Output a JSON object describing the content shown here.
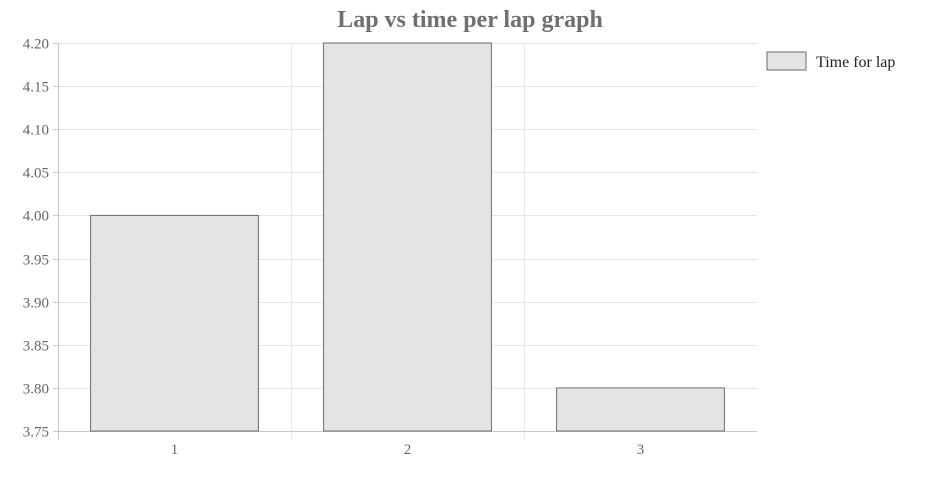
{
  "chart_data": {
    "type": "bar",
    "title": "Lap vs time per lap graph",
    "categories": [
      "1",
      "2",
      "3"
    ],
    "series": [
      {
        "name": "Time for lap",
        "values": [
          4.0,
          4.2,
          3.8
        ]
      }
    ],
    "xlabel": "",
    "ylabel": "",
    "ylim": [
      3.75,
      4.2
    ],
    "yticks": [
      "4.20",
      "4.15",
      "4.10",
      "4.05",
      "4.00",
      "3.95",
      "3.90",
      "3.85",
      "3.80",
      "3.75"
    ],
    "grid": true,
    "legend_position": "top-right",
    "colors": {
      "bar_fill": "#e4e4e4",
      "bar_stroke": "#6b6b6b",
      "grid": "#e6e6e6",
      "axis": "#c8c8c8"
    }
  }
}
